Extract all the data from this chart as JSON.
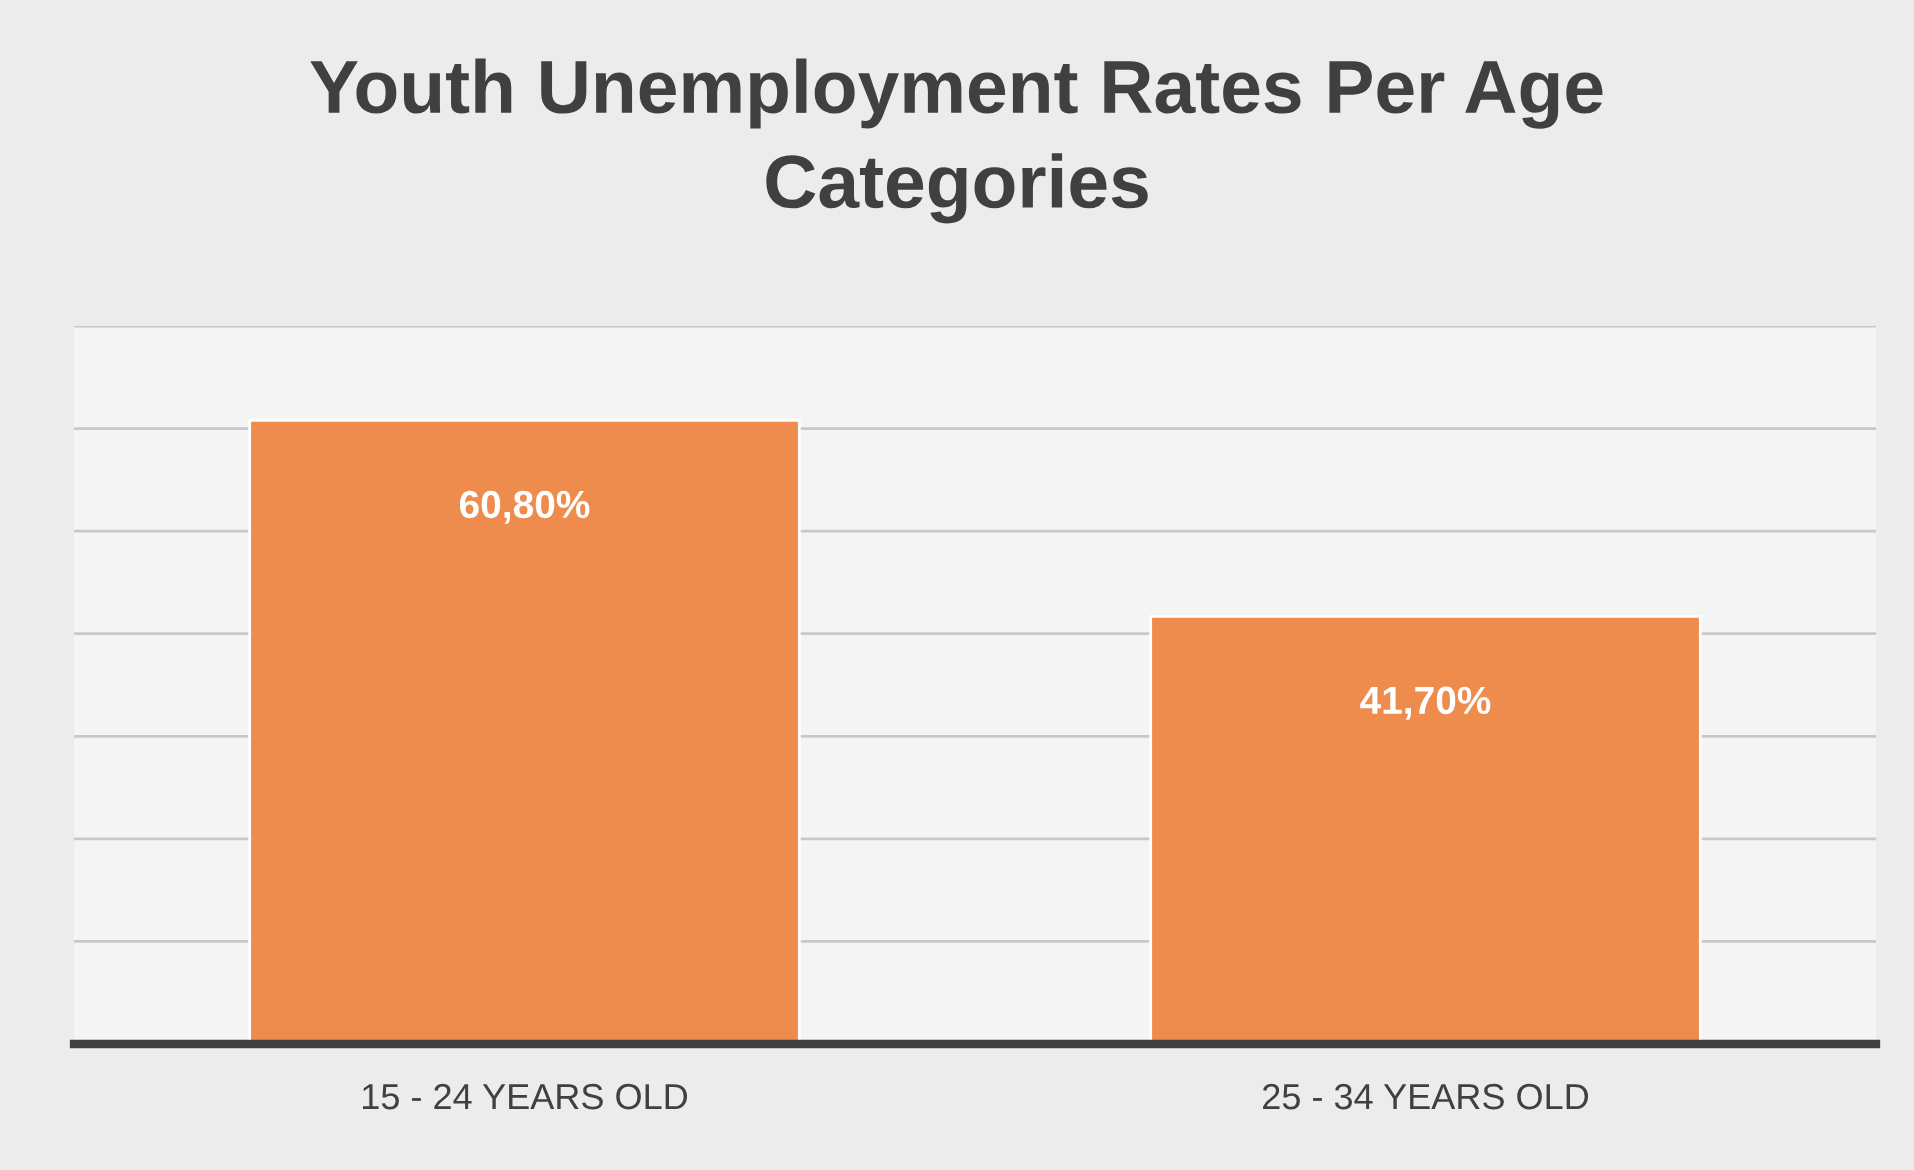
{
  "chart_data": {
    "type": "bar",
    "title": "Youth Unemployment Rates Per Age\nCategories",
    "categories": [
      "15 - 24 YEARS OLD",
      "25 - 34 YEARS OLD"
    ],
    "values": [
      60.8,
      41.7
    ],
    "value_labels": [
      "60,80%",
      "41,70%"
    ],
    "color": "#ee8c4e",
    "ylim": [
      0,
      70
    ],
    "yticks": [
      {
        "value": 0,
        "label": null
      },
      {
        "value": 10,
        "label": null
      },
      {
        "value": 20,
        "label": null
      },
      {
        "value": 30,
        "label": null
      },
      {
        "value": 40,
        "label": null
      },
      {
        "value": 50,
        "label": null
      },
      {
        "value": 60,
        "label": null
      },
      {
        "value": 70,
        "label": null
      }
    ],
    "grid": "y",
    "tick_labels": "x"
  }
}
